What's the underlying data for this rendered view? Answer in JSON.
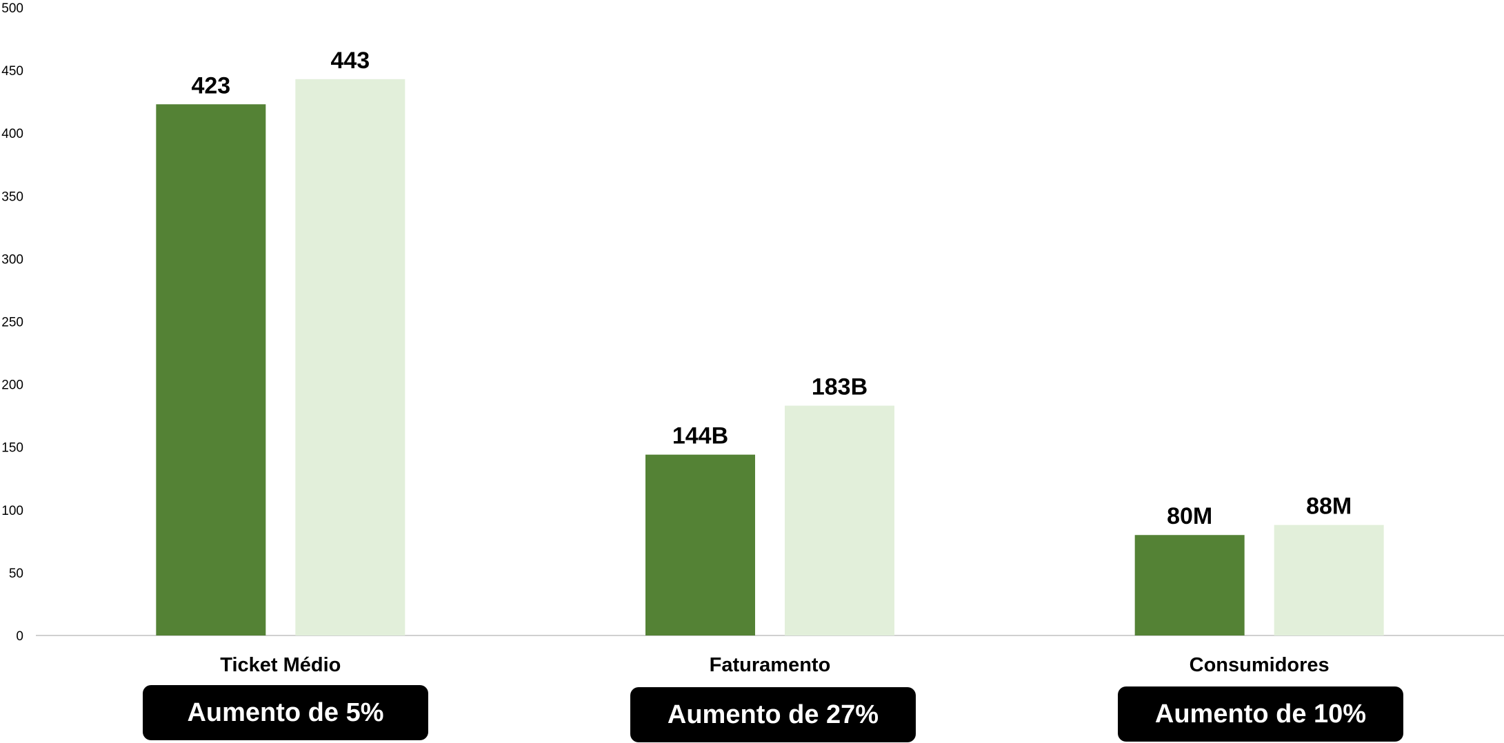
{
  "chart_data": {
    "type": "bar",
    "title": "",
    "xlabel": "",
    "ylabel": "",
    "ylim": [
      0,
      500
    ],
    "yticks": [
      0,
      50,
      100,
      150,
      200,
      250,
      300,
      350,
      400,
      450,
      500
    ],
    "grid": false,
    "legend": "none",
    "categories": [
      "Ticket Médio",
      "Faturamento",
      "Consumidores"
    ],
    "series": [
      {
        "values": [
          423,
          144,
          80
        ],
        "data_labels": [
          "423",
          "144B",
          "80M"
        ],
        "color": "#548235"
      },
      {
        "values": [
          443,
          183,
          88
        ],
        "data_labels": [
          "443",
          "183B",
          "88M"
        ],
        "color": "#E2EFDA"
      }
    ],
    "annotations": [
      "Aumento de 5%",
      "Aumento de 27%",
      "Aumento de 10%"
    ]
  }
}
